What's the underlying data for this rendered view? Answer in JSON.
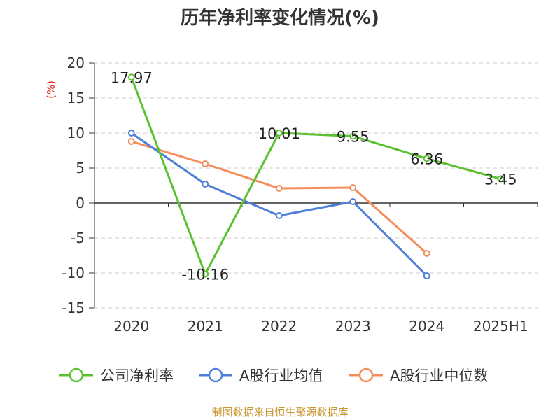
{
  "chart_data": {
    "type": "line",
    "title": "历年净利率变化情况(%)",
    "ylabel": "(%)",
    "xlabel": "",
    "categories": [
      "2020",
      "2021",
      "2022",
      "2023",
      "2024",
      "2025H1"
    ],
    "ylim": [
      -15,
      20
    ],
    "yticks": [
      20,
      15,
      10,
      5,
      0,
      -5,
      -10,
      -15
    ],
    "ytick_labels": [
      "20",
      "15",
      "10",
      "5",
      "0",
      "-5",
      "-10",
      "-15"
    ],
    "grid": true,
    "legend_position": "bottom",
    "series": [
      {
        "name": "公司净利率",
        "color": "#5cc132",
        "values": [
          17.97,
          -10.16,
          10.01,
          9.55,
          6.36,
          3.45
        ],
        "labels": [
          "17.97",
          "-10.16",
          "10.01",
          "9.55",
          "6.36",
          "3.45"
        ]
      },
      {
        "name": "A股行业均值",
        "color": "#4f7fd9",
        "values": [
          10.0,
          2.7,
          -1.8,
          0.2,
          -10.4,
          null
        ]
      },
      {
        "name": "A股行业中位数",
        "color": "#f48d5b",
        "values": [
          8.8,
          5.6,
          2.1,
          2.2,
          -7.2,
          null
        ]
      }
    ],
    "source": "制图数据来自恒生聚源数据库"
  }
}
